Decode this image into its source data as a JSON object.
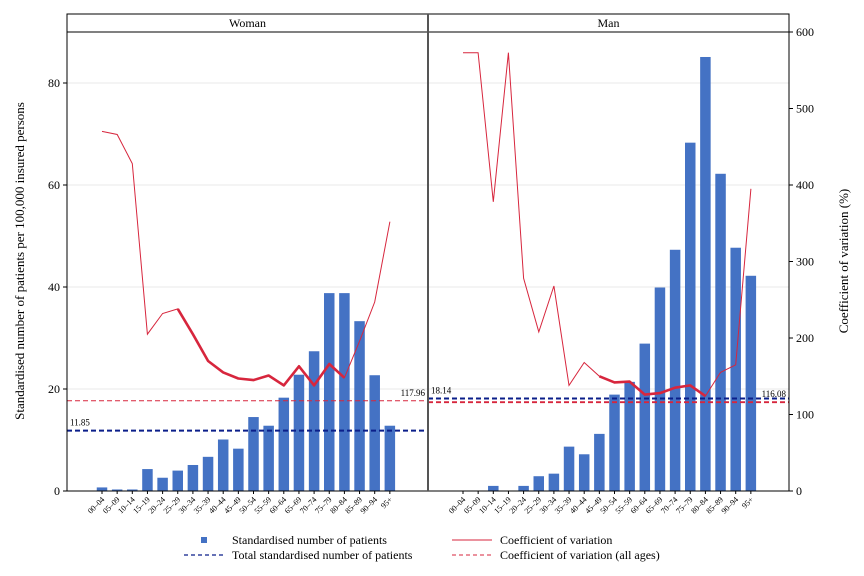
{
  "chart_data": {
    "type": "bar",
    "layout": "two facet panels sharing y axes; bars on left axis, coefficient-of-variation lines on right axis",
    "grid": true,
    "legend_position": "bottom",
    "y_left": {
      "label": "Standardised number of patients per 100,000 insured persons",
      "ylim": [
        0,
        90
      ],
      "ticks": [
        "0",
        "20",
        "40",
        "60",
        "80"
      ]
    },
    "y_right": {
      "label": "Coefficient of variation (%)",
      "ylim": [
        0,
        600
      ],
      "ticks": [
        "0",
        "100",
        "200",
        "300",
        "400",
        "500",
        "600"
      ]
    },
    "categories": [
      "00–04",
      "05–09",
      "10–14",
      "15–19",
      "20–24",
      "25–29",
      "30–34",
      "35–39",
      "40–44",
      "45–49",
      "50–54",
      "55–59",
      "60–64",
      "65–69",
      "70–74",
      "75–79",
      "80–84",
      "85–89",
      "90–94",
      "95+"
    ],
    "colors": {
      "bar": "#4472c4",
      "cv_line": "#d7263d",
      "total_line": "#0b1f8a",
      "cv_all_line": "#d7263d"
    },
    "panels": [
      {
        "title": "Woman",
        "bars": [
          0.7,
          0.3,
          0.3,
          4.3,
          2.6,
          4.0,
          5.1,
          6.7,
          10.1,
          8.3,
          14.5,
          12.8,
          18.3,
          22.8,
          27.4,
          38.8,
          38.8,
          33.3,
          22.7,
          12.8
        ],
        "cv": [
          null,
          null,
          null,
          205,
          232,
          238,
          205,
          170,
          155,
          147,
          145,
          151,
          138,
          163,
          138,
          166,
          148,
          196,
          247,
          352
        ],
        "cv_bold_from": 5,
        "cv_bold_to": 16,
        "cv_top": [
          470,
          466,
          428
        ],
        "total": 11.85,
        "total_label": "11.85",
        "cv_all": 117.96,
        "cv_all_label": "117.96"
      },
      {
        "title": "Man",
        "bars": [
          0,
          0,
          1.0,
          0,
          1.0,
          2.9,
          3.4,
          8.7,
          7.2,
          11.2,
          18.9,
          21.4,
          28.9,
          39.9,
          47.3,
          68.3,
          85.1,
          62.2,
          47.7,
          42.2
        ],
        "cv": [
          null,
          null,
          378,
          573,
          278,
          208,
          268,
          138,
          168,
          150,
          142,
          143,
          126,
          128,
          135,
          138,
          124,
          155,
          165,
          395
        ],
        "cv_bold_from": 9,
        "cv_bold_to": 16,
        "cv_top": [
          573,
          573
        ],
        "total": 18.14,
        "total_label": "18.14",
        "cv_all": 116.08,
        "cv_all_label": "116.08"
      }
    ],
    "legend": [
      {
        "key": "bars",
        "label": "Standardised number of patients"
      },
      {
        "key": "cv",
        "label": "Coefficient of variation"
      },
      {
        "key": "total",
        "label": "Total standardised number of patients"
      },
      {
        "key": "cv_all",
        "label": "Coefficient of variation (all ages)"
      }
    ]
  }
}
